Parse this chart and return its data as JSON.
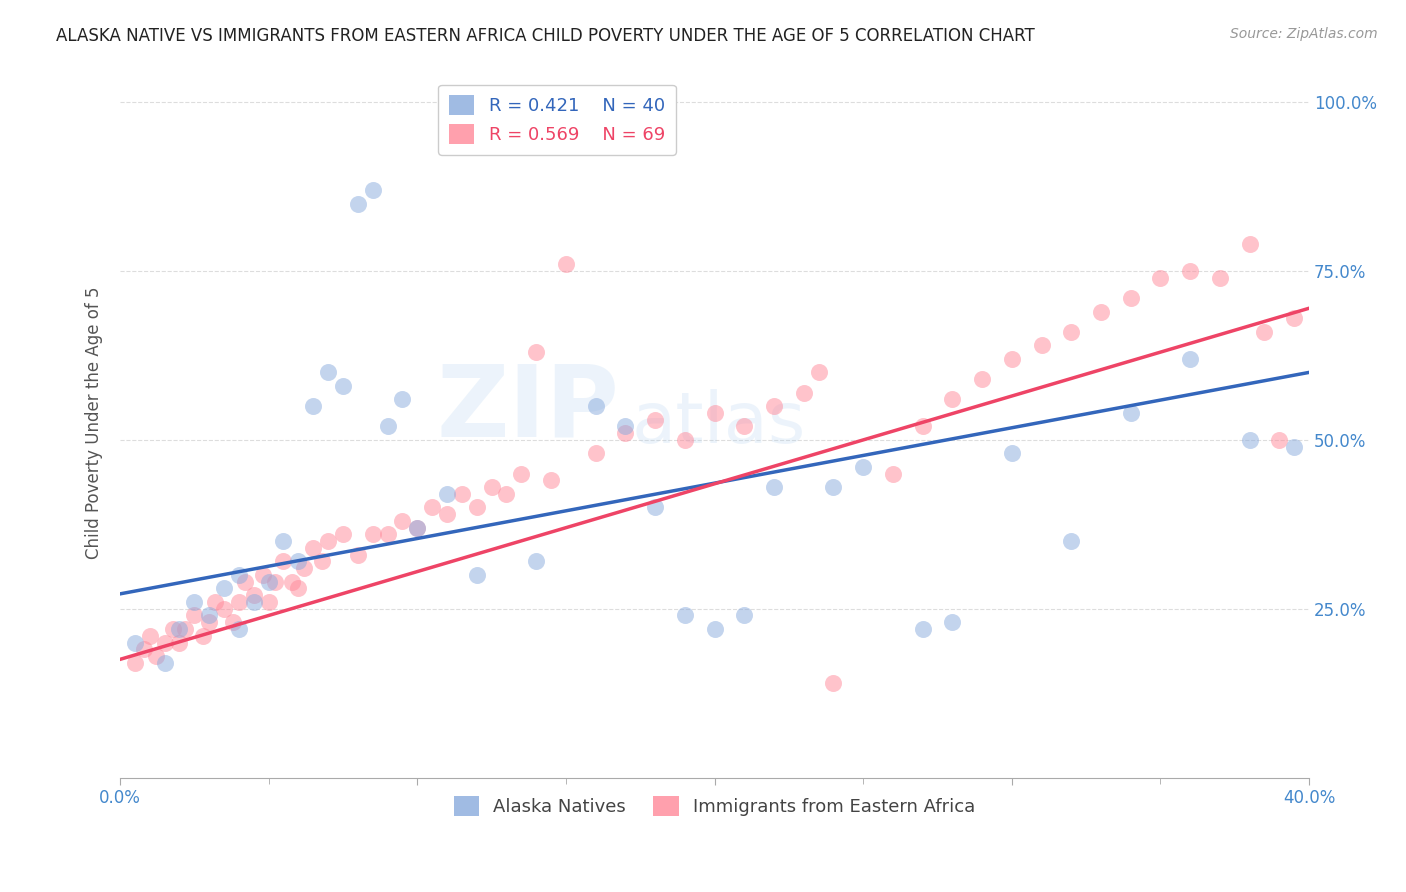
{
  "title": "ALASKA NATIVE VS IMMIGRANTS FROM EASTERN AFRICA CHILD POVERTY UNDER THE AGE OF 5 CORRELATION CHART",
  "source": "Source: ZipAtlas.com",
  "ylabel": "Child Poverty Under the Age of 5",
  "xlim": [
    0.0,
    0.4
  ],
  "ylim": [
    0.0,
    1.05
  ],
  "watermark_line1": "ZIP",
  "watermark_line2": "atlas",
  "legend_r1": "R = 0.421",
  "legend_n1": "N = 40",
  "legend_r2": "R = 0.569",
  "legend_n2": "N = 69",
  "blue_color": "#88AADD",
  "pink_color": "#FF8899",
  "blue_line_color": "#3366BB",
  "pink_line_color": "#EE4466",
  "alaska_label": "Alaska Natives",
  "eastern_label": "Immigrants from Eastern Africa",
  "alaska_x": [
    0.005,
    0.015,
    0.02,
    0.025,
    0.03,
    0.035,
    0.04,
    0.04,
    0.045,
    0.05,
    0.055,
    0.06,
    0.065,
    0.07,
    0.075,
    0.08,
    0.085,
    0.09,
    0.095,
    0.1,
    0.11,
    0.12,
    0.14,
    0.16,
    0.17,
    0.18,
    0.19,
    0.2,
    0.21,
    0.22,
    0.24,
    0.25,
    0.27,
    0.28,
    0.3,
    0.32,
    0.34,
    0.36,
    0.38,
    0.395
  ],
  "alaska_y": [
    0.2,
    0.17,
    0.22,
    0.26,
    0.24,
    0.28,
    0.22,
    0.3,
    0.26,
    0.29,
    0.35,
    0.32,
    0.55,
    0.6,
    0.58,
    0.85,
    0.87,
    0.52,
    0.56,
    0.37,
    0.42,
    0.3,
    0.32,
    0.55,
    0.52,
    0.4,
    0.24,
    0.22,
    0.24,
    0.43,
    0.43,
    0.46,
    0.22,
    0.23,
    0.48,
    0.35,
    0.54,
    0.62,
    0.5,
    0.49
  ],
  "eastern_x": [
    0.005,
    0.008,
    0.01,
    0.012,
    0.015,
    0.018,
    0.02,
    0.022,
    0.025,
    0.028,
    0.03,
    0.032,
    0.035,
    0.038,
    0.04,
    0.042,
    0.045,
    0.048,
    0.05,
    0.052,
    0.055,
    0.058,
    0.06,
    0.062,
    0.065,
    0.068,
    0.07,
    0.075,
    0.08,
    0.085,
    0.09,
    0.095,
    0.1,
    0.105,
    0.11,
    0.115,
    0.12,
    0.125,
    0.13,
    0.135,
    0.14,
    0.145,
    0.15,
    0.16,
    0.17,
    0.18,
    0.19,
    0.2,
    0.21,
    0.22,
    0.23,
    0.235,
    0.24,
    0.26,
    0.27,
    0.28,
    0.29,
    0.3,
    0.31,
    0.32,
    0.33,
    0.34,
    0.35,
    0.36,
    0.37,
    0.38,
    0.385,
    0.39,
    0.395
  ],
  "eastern_y": [
    0.17,
    0.19,
    0.21,
    0.18,
    0.2,
    0.22,
    0.2,
    0.22,
    0.24,
    0.21,
    0.23,
    0.26,
    0.25,
    0.23,
    0.26,
    0.29,
    0.27,
    0.3,
    0.26,
    0.29,
    0.32,
    0.29,
    0.28,
    0.31,
    0.34,
    0.32,
    0.35,
    0.36,
    0.33,
    0.36,
    0.36,
    0.38,
    0.37,
    0.4,
    0.39,
    0.42,
    0.4,
    0.43,
    0.42,
    0.45,
    0.63,
    0.44,
    0.76,
    0.48,
    0.51,
    0.53,
    0.5,
    0.54,
    0.52,
    0.55,
    0.57,
    0.6,
    0.14,
    0.45,
    0.52,
    0.56,
    0.59,
    0.62,
    0.64,
    0.66,
    0.69,
    0.71,
    0.74,
    0.75,
    0.74,
    0.79,
    0.66,
    0.5,
    0.68
  ],
  "title_fontsize": 12,
  "source_fontsize": 10,
  "axis_tick_fontsize": 12,
  "ylabel_fontsize": 12,
  "legend_fontsize": 13,
  "watermark_fontsize_zip": 72,
  "watermark_fontsize_atlas": 52,
  "background_color": "#FFFFFF",
  "grid_color": "#DDDDDD",
  "title_color": "#222222",
  "axis_tick_color": "#4488CC",
  "ylabel_color": "#555555",
  "blue_line_intercept": 0.272,
  "blue_line_slope": 0.82,
  "pink_line_intercept": 0.175,
  "pink_line_slope": 1.3
}
